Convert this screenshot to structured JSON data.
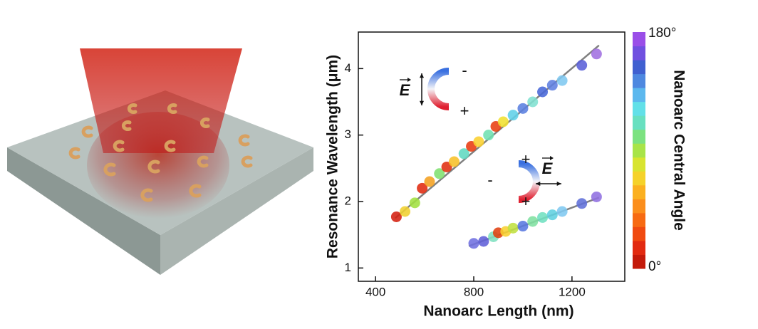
{
  "chart_data": {
    "type": "scatter",
    "xlabel": "Nanoarc Length (nm)",
    "ylabel": "Resonance Wavelength (μm)",
    "xlim": [
      330,
      1415
    ],
    "ylim": [
      0.8,
      4.55
    ],
    "xticks": [
      400,
      800,
      1200
    ],
    "yticks": [
      1,
      2,
      3,
      4
    ],
    "series": [
      {
        "x": [
          485,
          520,
          560,
          590,
          620,
          660,
          690,
          720,
          760,
          790,
          820,
          860,
          890,
          920,
          960,
          1000,
          1040,
          1080,
          1120,
          1160,
          1240,
          1300
        ],
        "values": [
          1.77,
          1.85,
          1.98,
          2.2,
          2.3,
          2.42,
          2.52,
          2.6,
          2.72,
          2.83,
          2.9,
          3.0,
          3.13,
          3.2,
          3.3,
          3.4,
          3.5,
          3.65,
          3.75,
          3.82,
          4.05,
          4.22
        ],
        "colors": [
          "#d42010",
          "#f0d030",
          "#a0e040",
          "#e02a10",
          "#f4a020",
          "#80e070",
          "#e03010",
          "#f7c028",
          "#60d8c0",
          "#e83a10",
          "#fbd030",
          "#70e0b0",
          "#e84010",
          "#f0e030",
          "#60d0e8",
          "#5a80e0",
          "#80e0d0",
          "#4868d8",
          "#6080e0",
          "#80c8f0",
          "#5a60d8",
          "#a070e0"
        ]
      },
      {
        "x": [
          800,
          840,
          880,
          900,
          930,
          960,
          1000,
          1040,
          1080,
          1120,
          1160,
          1240,
          1300
        ],
        "values": [
          1.37,
          1.4,
          1.47,
          1.53,
          1.55,
          1.6,
          1.63,
          1.7,
          1.76,
          1.8,
          1.85,
          1.97,
          2.07
        ],
        "colors": [
          "#7070e0",
          "#6060d8",
          "#80e0c0",
          "#e04010",
          "#f8d030",
          "#c0e040",
          "#5878e0",
          "#80e0a0",
          "#70e0c0",
          "#60d0e0",
          "#80c8f0",
          "#6070d8",
          "#9070e0"
        ]
      }
    ],
    "fits": [
      {
        "x": [
          480,
          1310
        ],
        "values": [
          1.75,
          4.35
        ],
        "color": "#808080"
      },
      {
        "x": [
          780,
          1310
        ],
        "values": [
          1.33,
          2.06
        ],
        "color": "#808080"
      }
    ],
    "colorbar": {
      "label": "Nanoarc Central Angle",
      "lim": [
        0,
        180
      ],
      "ticks": [
        {
          "value": 0,
          "label": "0°"
        },
        {
          "value": 180,
          "label": "180°"
        }
      ],
      "colors": [
        "#c41a0a",
        "#e22a10",
        "#f04a10",
        "#f76a12",
        "#fb8e1c",
        "#fbb020",
        "#f5d22a",
        "#d8e430",
        "#a8e448",
        "#7ce280",
        "#68e0c0",
        "#62e0e8",
        "#5cb8ee",
        "#4e88e0",
        "#4060d0",
        "#7050e0",
        "#9a4ee8"
      ]
    },
    "insets": [
      {
        "field": "E",
        "minus": "-",
        "plus": [
          "+"
        ]
      },
      {
        "field": "E",
        "minus": "-",
        "plus": [
          "+",
          "+"
        ]
      }
    ]
  }
}
